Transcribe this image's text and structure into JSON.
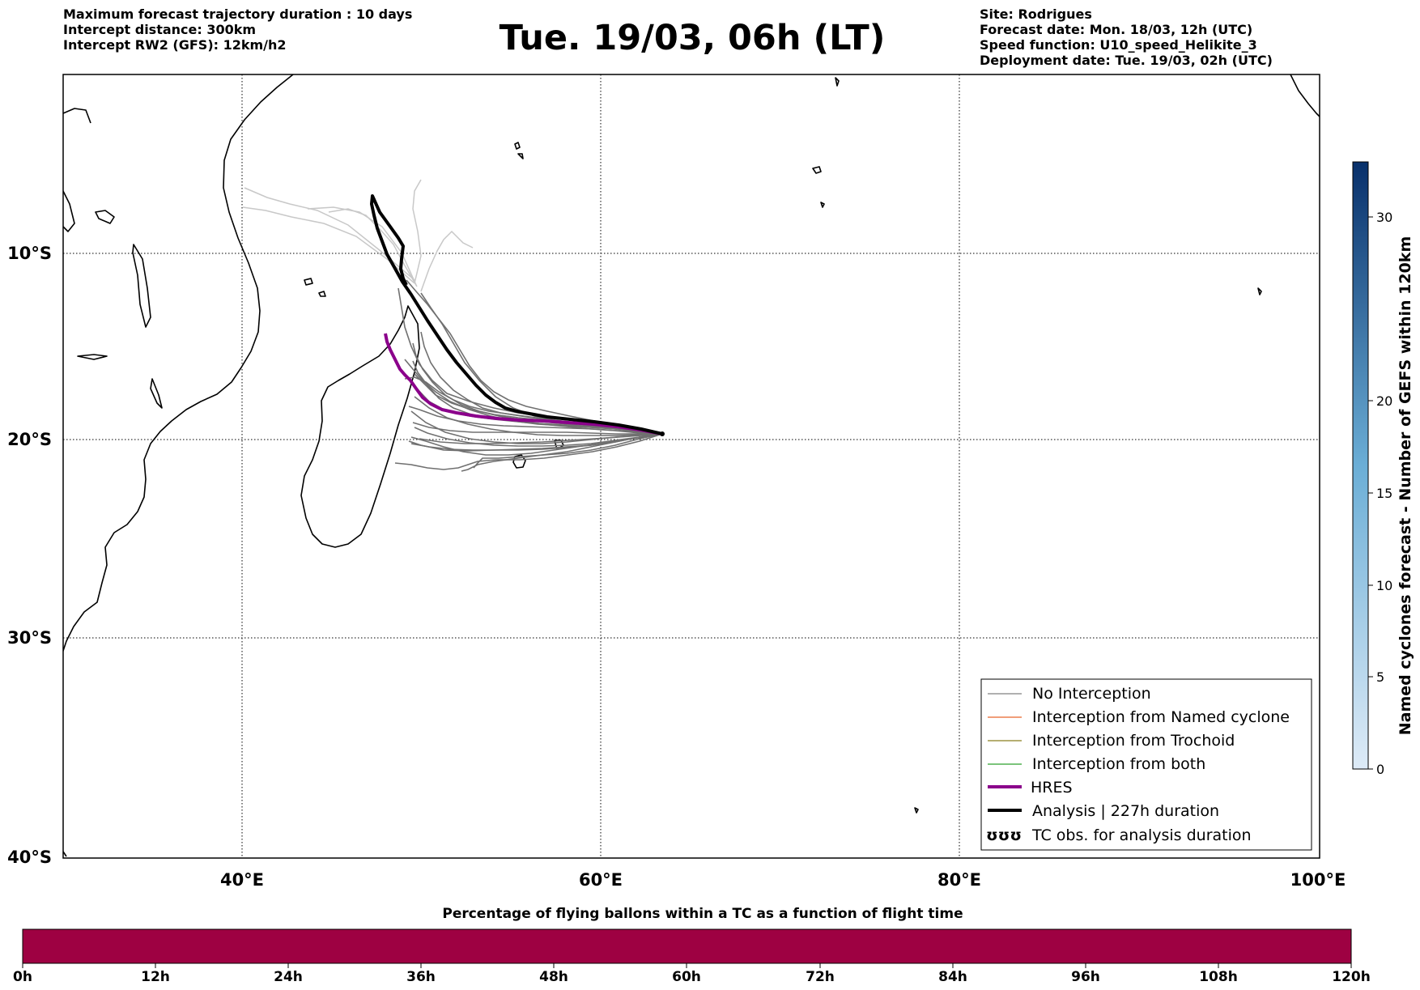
{
  "header_left": [
    "Maximum forecast trajectory duration : 10 days",
    "Intercept distance: 300km",
    "Intercept RW2 (GFS):  12km/h2"
  ],
  "title": "Tue. 19/03, 06h (LT)",
  "header_right": [
    "Site: Rodrigues",
    "Forecast date: Mon. 18/03, 12h (UTC)",
    "Speed function: U10_speed_Helikite_3",
    "Deployment date: Tue. 19/03, 02h (UTC)"
  ],
  "map": {
    "lon_range": [
      30,
      100
    ],
    "lat_range": [
      -40,
      2
    ],
    "lon_ticks": [
      "40°E",
      "60°E",
      "80°E",
      "100°E"
    ],
    "lat_ticks": [
      "10°S",
      "20°S",
      "30°S",
      "40°S"
    ],
    "release_site": {
      "name": "Rodrigues",
      "lon": 63.4,
      "lat": -19.7
    }
  },
  "legend": [
    {
      "label": "No Interception",
      "color": "#808080",
      "style": "thin"
    },
    {
      "label": "Interception from Named cyclone",
      "color": "#e8632b",
      "style": "thin"
    },
    {
      "label": "Interception from Trochoid",
      "color": "#8b7d1e",
      "style": "thin"
    },
    {
      "label": "Interception from both",
      "color": "#2ca02c",
      "style": "thin"
    },
    {
      "label": "HRES",
      "color": "#8b008b",
      "style": "thick"
    },
    {
      "label": "Analysis | 227h duration",
      "color": "#000000",
      "style": "thick"
    },
    {
      "label": "TC obs. for analysis duration",
      "color": "#000000",
      "style": "symbol",
      "symbol": "ʊʊʊ"
    }
  ],
  "colorbar_right": {
    "label": "Named cyclones forecast - Number of GEFS within 120km",
    "min": 0,
    "max": 33,
    "ticks": [
      "0",
      "5",
      "10",
      "15",
      "20",
      "30"
    ],
    "tick_values": [
      0,
      5,
      10,
      15,
      20,
      30
    ],
    "color_low": "#deebf7",
    "color_high": "#08306b"
  },
  "bottom_bar": {
    "title": "Percentage of flying ballons within a TC as a function of flight time",
    "fill_color": "#9e0142",
    "ticks": [
      "0h",
      "12h",
      "24h",
      "36h",
      "48h",
      "60h",
      "72h",
      "84h",
      "96h",
      "108h",
      "120h"
    ]
  }
}
